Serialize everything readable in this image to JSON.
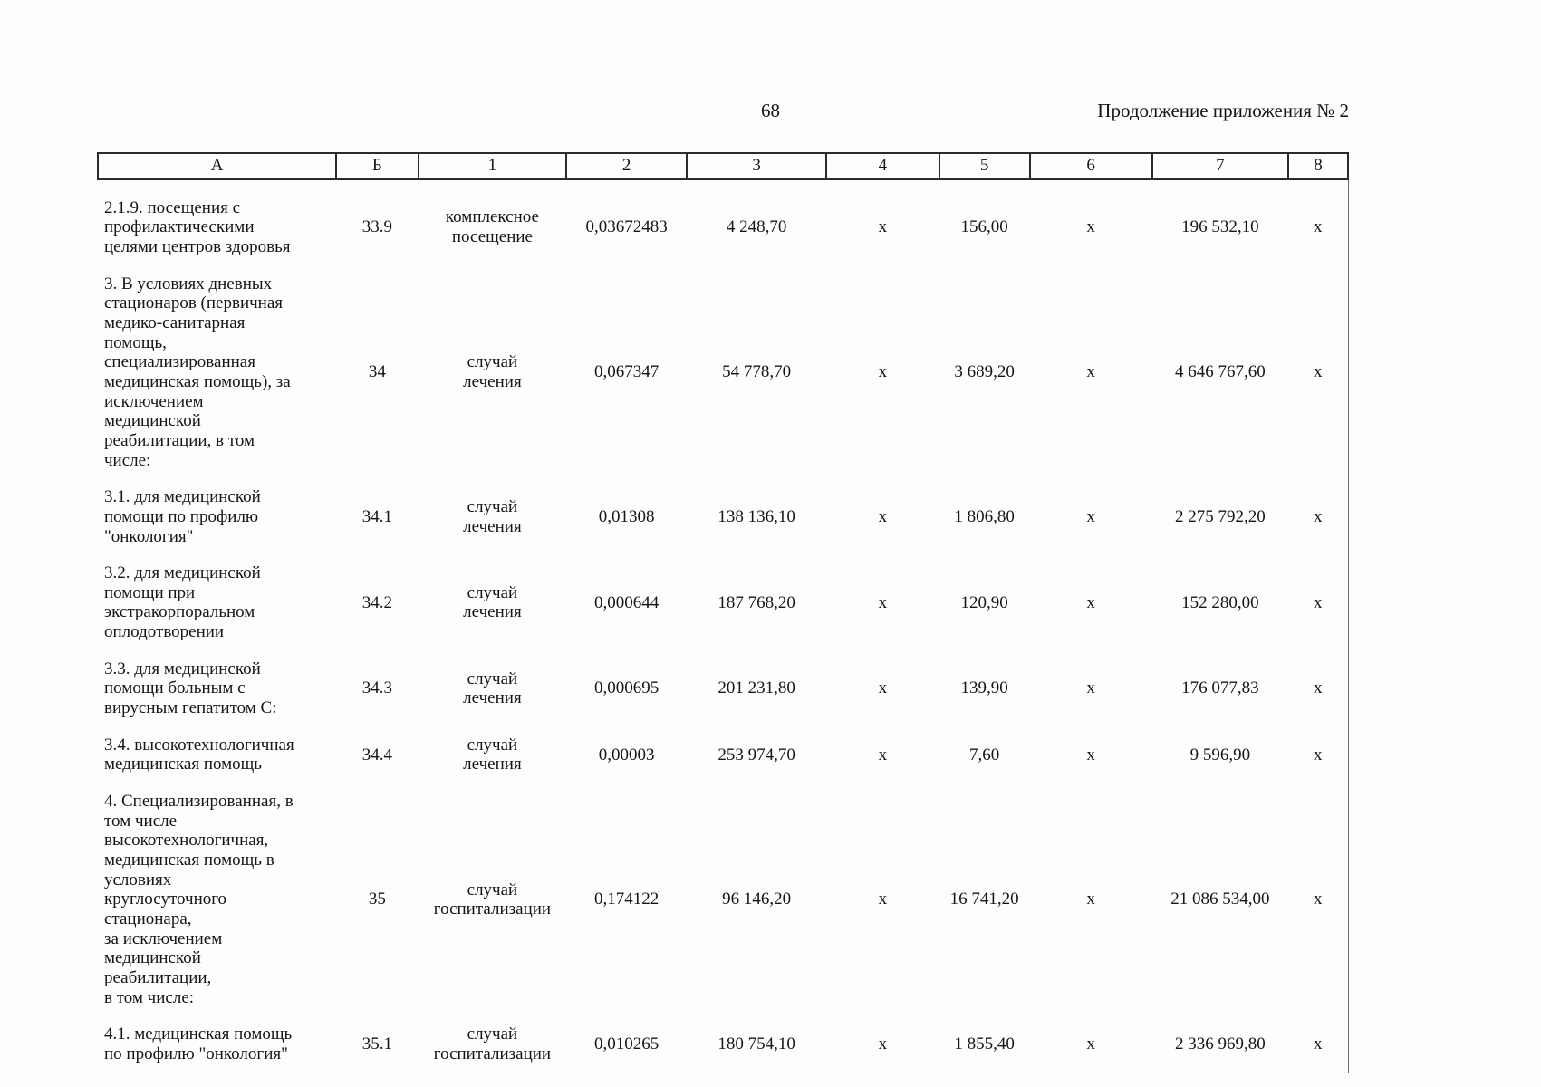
{
  "page": {
    "number": "68",
    "header_right": "Продолжение приложения № 2"
  },
  "table": {
    "columns": [
      "А",
      "Б",
      "1",
      "2",
      "3",
      "4",
      "5",
      "6",
      "7",
      "8"
    ],
    "rows": [
      [
        "2.1.9. посещения с\nпрофилактическими\nцелями центров здоровья",
        "33.9",
        "комплексное\nпосещение",
        "0,03672483",
        "4 248,70",
        "х",
        "156,00",
        "х",
        "196 532,10",
        "х"
      ],
      [
        "3. В условиях дневных\nстационаров (первичная\nмедико-санитарная\nпомощь,\nспециализированная\nмедицинская помощь), за\nисключением\nмедицинской\nреабилитации, в том\nчисле:",
        "34",
        "случай\nлечения",
        "0,067347",
        "54 778,70",
        "х",
        "3 689,20",
        "х",
        "4 646 767,60",
        "х"
      ],
      [
        "3.1. для медицинской\nпомощи по профилю\n\"онкология\"",
        "34.1",
        "случай\nлечения",
        "0,01308",
        "138 136,10",
        "х",
        "1 806,80",
        "х",
        "2 275 792,20",
        "х"
      ],
      [
        "3.2. для медицинской\nпомощи при\nэкстракорпоральном\nоплодотворении",
        "34.2",
        "случай\nлечения",
        "0,000644",
        "187 768,20",
        "х",
        "120,90",
        "х",
        "152 280,00",
        "х"
      ],
      [
        "3.3. для медицинской\nпомощи больным с\nвирусным гепатитом С:",
        "34.3",
        "случай\nлечения",
        "0,000695",
        "201 231,80",
        "х",
        "139,90",
        "х",
        "176 077,83",
        "х"
      ],
      [
        "3.4. высокотехнологичная\nмедицинская помощь",
        "34.4",
        "случай\nлечения",
        "0,00003",
        "253 974,70",
        "х",
        "7,60",
        "х",
        "9 596,90",
        "х"
      ],
      [
        "4. Специализированная, в\nтом числе\nвысокотехнологичная,\nмедицинская помощь в\nусловиях\nкруглосуточного\nстационара,\nза исключением\nмедицинской\nреабилитации,\nв том числе:",
        "35",
        "случай\nгоспитализации",
        "0,174122",
        "96 146,20",
        "х",
        "16 741,20",
        "х",
        "21 086 534,00",
        "х"
      ],
      [
        "4.1. медицинская помощь\nпо профилю \"онкология\"",
        "35.1",
        "случай\nгоспитализации",
        "0,010265",
        "180 754,10",
        "х",
        "1 855,40",
        "х",
        "2 336 969,80",
        "х"
      ]
    ]
  }
}
